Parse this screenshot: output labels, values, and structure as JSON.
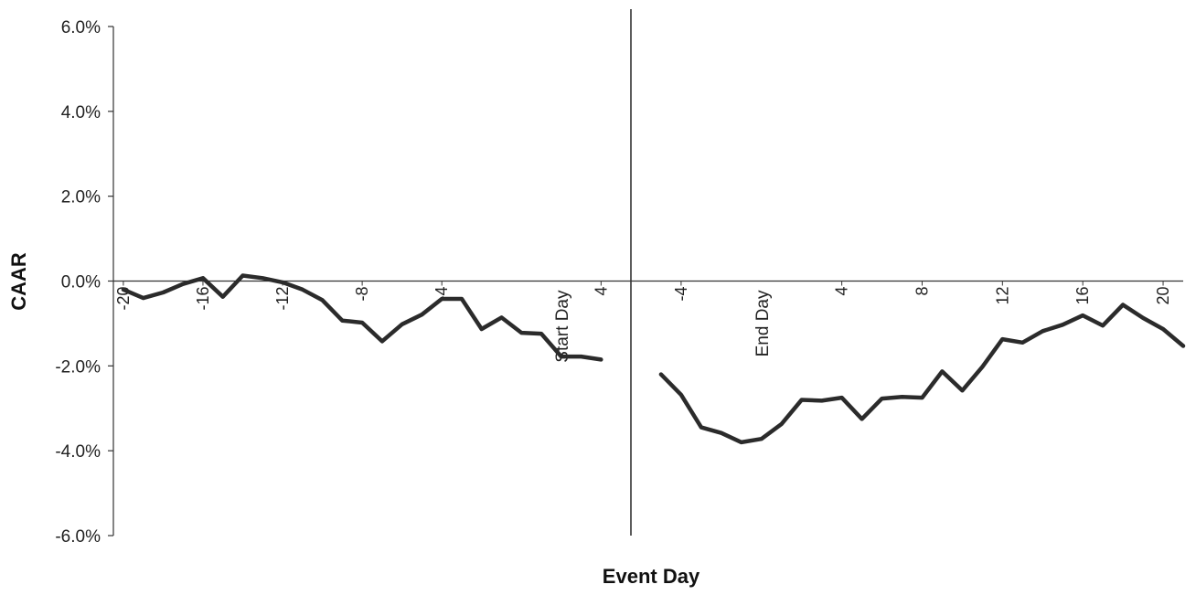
{
  "chart_data": {
    "type": "line",
    "xlabel": "Event Day",
    "ylabel": "CAAR",
    "ylim": [
      -0.06,
      0.06
    ],
    "yticks": [
      0.06,
      0.04,
      0.02,
      0.0,
      -0.02,
      -0.04,
      -0.06
    ],
    "ytick_labels": [
      "6.0%",
      "4.0%",
      "2.0%",
      "0.0%",
      "-2.0%",
      "-4.0%",
      "-6.0%"
    ],
    "grid": false,
    "legend": "none",
    "panels": [
      {
        "name": "pre",
        "xlim": [
          -20.5,
          5.5
        ],
        "xticks": [
          -20,
          -16,
          -12,
          -8,
          -4,
          4
        ],
        "xtick_labels": [
          "-20",
          "-16",
          "-12",
          "-8",
          "-4",
          "4"
        ],
        "marker": {
          "x": 2,
          "label": "Start Day"
        },
        "x": [
          -20,
          -19,
          -18,
          -17,
          -16,
          -15,
          -14,
          -13,
          -12,
          -11,
          -10,
          -9,
          -8,
          -7,
          -6,
          -5,
          -4,
          -3,
          -2,
          -1,
          0,
          1,
          2,
          3,
          4
        ],
        "y": [
          -0.002,
          -0.004,
          -0.0027,
          -0.0007,
          0.0007,
          -0.0037,
          0.0013,
          0.0007,
          -0.0003,
          -0.002,
          -0.0045,
          -0.0093,
          -0.0098,
          -0.0142,
          -0.0102,
          -0.0079,
          -0.0042,
          -0.0042,
          -0.0113,
          -0.0086,
          -0.0122,
          -0.0124,
          -0.0178,
          -0.0178,
          -0.0185
        ]
      },
      {
        "name": "post",
        "xlim": [
          -6.5,
          21.0
        ],
        "xticks": [
          -4,
          4,
          8,
          12,
          16,
          20
        ],
        "xtick_labels": [
          "-4",
          "4",
          "8",
          "12",
          "16",
          "20"
        ],
        "marker": {
          "x": 0,
          "label": "End Day"
        },
        "x": [
          -5,
          -4,
          -3,
          -2,
          -1,
          0,
          1,
          2,
          3,
          4,
          5,
          6,
          7,
          8,
          9,
          10,
          11,
          12,
          13,
          14,
          15,
          16,
          17,
          18,
          19,
          20,
          21
        ],
        "y": [
          -0.022,
          -0.0268,
          -0.0345,
          -0.0358,
          -0.038,
          -0.0372,
          -0.0337,
          -0.028,
          -0.0282,
          -0.0275,
          -0.0325,
          -0.0277,
          -0.0273,
          -0.0275,
          -0.0213,
          -0.0258,
          -0.0202,
          -0.0137,
          -0.0145,
          -0.0118,
          -0.0103,
          -0.0081,
          -0.0105,
          -0.0056,
          -0.0087,
          -0.0113,
          -0.0153
        ]
      }
    ]
  }
}
